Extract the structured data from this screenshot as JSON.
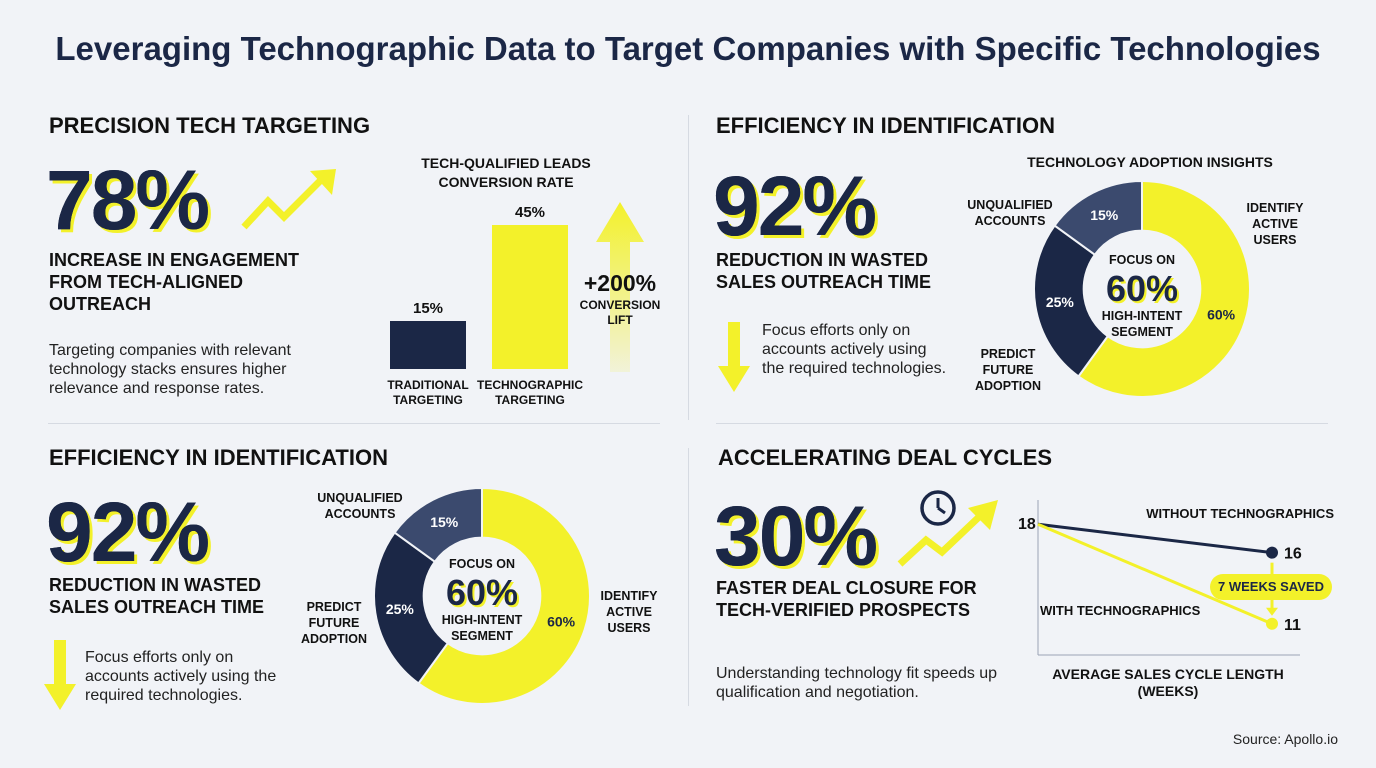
{
  "title": "Leveraging Technographic Data to Target Companies with Specific Technologies",
  "source": "Source: Apollo.io",
  "q1": {
    "heading": "PRECISION TECH TARGETING",
    "stat": "78%",
    "stat_desc": "INCREASE IN ENGAGEMENT FROM TECH-ALIGNED OUTREACH",
    "body": "Targeting companies with relevant technology stacks ensures higher relevance and response rates.",
    "lift_value": "+200%",
    "lift_label": "CONVERSION LIFT"
  },
  "q2": {
    "heading": "EFFICIENCY IN IDENTIFICATION",
    "stat": "92%",
    "stat_desc": "REDUCTION IN WASTED SALES OUTREACH TIME",
    "body": "Focus efforts only on accounts actively using the required technologies.",
    "center_top": "FOCUS ON",
    "center_value": "60%",
    "center_bottom": "HIGH-INTENT SEGMENT"
  },
  "q3": {
    "heading": "EFFICIENCY IN IDENTIFICATION",
    "stat": "92%",
    "stat_desc": "REDUCTION IN WASTED SALES OUTREACH TIME",
    "body": "Focus efforts only on accounts actively using the required technologies.",
    "center_top": "FOCUS ON",
    "center_value": "60%",
    "center_bottom": "HIGH-INTENT SEGMENT"
  },
  "q4": {
    "heading": "ACCELERATING DEAL CYCLES",
    "stat": "30%",
    "stat_desc": "FASTER DEAL CLOSURE FOR TECH-VERIFIED PROSPECTS",
    "body": "Understanding technology fit speeds up qualification and negotiation.",
    "saved_badge": "7 WEEKS SAVED"
  },
  "colors": {
    "navy": "#1b2746",
    "yellow": "#f3f12a",
    "slate": "#3b4a6e"
  },
  "chart_data": [
    {
      "type": "bar",
      "title": "TECH-QUALIFIED LEADS CONVERSION RATE",
      "categories": [
        "TRADITIONAL TARGETING",
        "TECHNOGRAPHIC TARGETING"
      ],
      "values": [
        15,
        45
      ],
      "value_labels": [
        "15%",
        "45%"
      ],
      "colors": [
        "#1b2746",
        "#f3f12a"
      ],
      "ylim": [
        0,
        50
      ]
    },
    {
      "type": "pie",
      "title": "TECHNOLOGY ADOPTION INSIGHTS",
      "labels": [
        "IDENTIFY ACTIVE USERS",
        "PREDICT FUTURE ADOPTION",
        "UNQUALIFIED ACCOUNTS"
      ],
      "values": [
        60,
        25,
        15
      ],
      "value_labels": [
        "60%",
        "25%",
        "15%"
      ],
      "colors": [
        "#f3f12a",
        "#1b2746",
        "#3b4a6e"
      ]
    },
    {
      "type": "pie",
      "title": "",
      "labels": [
        "IDENTIFY ACTIVE USERS",
        "PREDICT FUTURE ADOPTION",
        "UNQUALIFIED ACCOUNTS"
      ],
      "values": [
        60,
        25,
        15
      ],
      "value_labels": [
        "60%",
        "25%",
        "15%"
      ],
      "colors": [
        "#f3f12a",
        "#1b2746",
        "#3b4a6e"
      ]
    },
    {
      "type": "line",
      "title": "AVERAGE SALES CYCLE LENGTH (WEEKS)",
      "x": [
        0,
        1
      ],
      "series": [
        {
          "name": "WITHOUT TECHNOGRAPHICS",
          "values": [
            18,
            16
          ]
        },
        {
          "name": "WITH TECHNOGRAPHICS",
          "values": [
            18,
            11
          ]
        }
      ],
      "point_labels": [
        "18",
        "16",
        "11"
      ],
      "ylim": [
        10,
        19
      ]
    }
  ]
}
